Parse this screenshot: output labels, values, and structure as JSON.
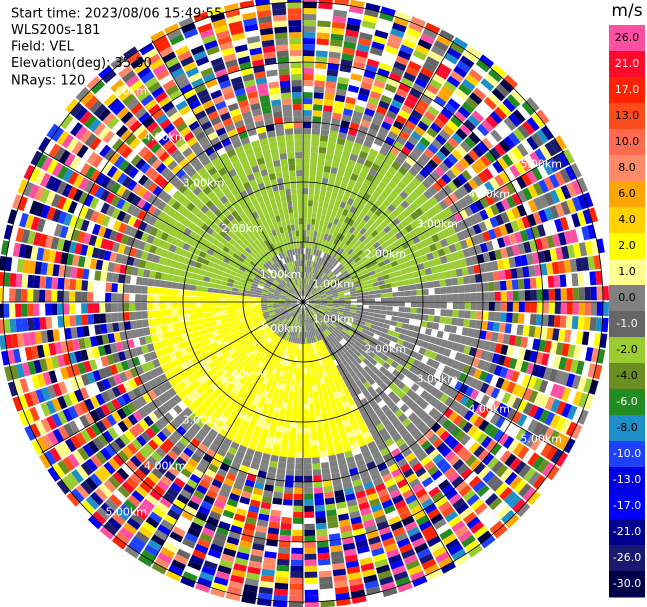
{
  "chart_data": {
    "type": "ppi",
    "header": [
      "Start time: 2023/08/06 15:49:55",
      "WLS200s-181",
      "Field: VEL",
      "Elevation(deg): 35.30",
      "NRays: 120"
    ],
    "colorbar_title": "m/s",
    "colorbar_ticks": [
      {
        "value": 26,
        "label": "26.0"
      },
      {
        "value": 21,
        "label": "21.0"
      },
      {
        "value": 17,
        "label": "17.0"
      },
      {
        "value": 13,
        "label": "13.0"
      },
      {
        "value": 10,
        "label": "10.0"
      },
      {
        "value": 8,
        "label": "8.0"
      },
      {
        "value": 6,
        "label": "6.0"
      },
      {
        "value": 4,
        "label": "4.0"
      },
      {
        "value": 2,
        "label": "2.0"
      },
      {
        "value": 1,
        "label": "1.0"
      },
      {
        "value": 0,
        "label": "0.0"
      },
      {
        "value": -1,
        "label": "-1.0"
      },
      {
        "value": -2,
        "label": "-2.0"
      },
      {
        "value": -4,
        "label": "-4.0"
      },
      {
        "value": -6,
        "label": "-6.0"
      },
      {
        "value": -8,
        "label": "-8.0"
      },
      {
        "value": -10,
        "label": "-10.0"
      },
      {
        "value": -13,
        "label": "-13.0"
      },
      {
        "value": -17,
        "label": "-17.0"
      },
      {
        "value": -21,
        "label": "-21.0"
      },
      {
        "value": -26,
        "label": "-26.0"
      },
      {
        "value": -30,
        "label": "-30.0"
      }
    ],
    "colorbar_colors": [
      "#ff4fa3",
      "#ff0a2a",
      "#ff2200",
      "#ff4a1a",
      "#ff6a50",
      "#ff8a6a",
      "#ffa500",
      "#ffd200",
      "#ffff00",
      "#ffff90",
      "#808080",
      "#666666",
      "#9acd32",
      "#6b8e23",
      "#228b22",
      "#1e8fc8",
      "#1e40ff",
      "#0000e0",
      "#0000ff",
      "#000090",
      "#191970",
      "#00004a"
    ],
    "range_labels": [
      "1.00km",
      "2.00km",
      "3.00km",
      "4.00km",
      "5.00km"
    ]
  }
}
